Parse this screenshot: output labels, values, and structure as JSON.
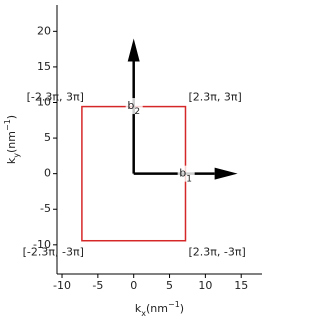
{
  "chart_data": {
    "type": "vector",
    "xlabel": [
      "k",
      "x",
      "(nm",
      "−1",
      ")"
    ],
    "ylabel": [
      "k",
      "y",
      "(nm",
      "−1",
      ")"
    ],
    "xlim": [
      -10.7,
      17.9
    ],
    "ylim": [
      -14.1,
      23.7
    ],
    "xticks": [
      -10,
      -5,
      0,
      5,
      10,
      15
    ],
    "yticks": [
      -10,
      -5,
      0,
      5,
      10,
      15,
      20
    ],
    "rectangle": {
      "x": [
        -7.226,
        7.226
      ],
      "y": [
        -9.425,
        9.425
      ],
      "color": "#d62728"
    },
    "corner_labels": [
      "[-2.3π, 3π]",
      "[2.3π, 3π]",
      "[-2.3π, -3π]",
      "[2.3π, -3π]"
    ],
    "vectors": [
      {
        "name": [
          "b",
          "2"
        ],
        "dx": 0,
        "dy": 19.0,
        "color": "#000000"
      },
      {
        "name": [
          "b",
          "1"
        ],
        "dx": 14.5,
        "dy": 0,
        "color": "#000000"
      }
    ]
  }
}
